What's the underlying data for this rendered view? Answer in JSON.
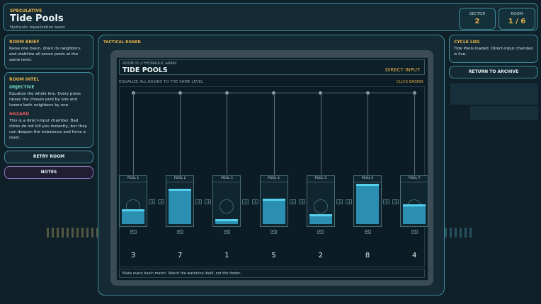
{
  "header": {
    "kicker": "SPECULATIVE",
    "title": "Tide Pools",
    "subtitle": "Hydraulic equalization basin",
    "sector_label": "SECTOR",
    "sector_value": "2",
    "room_label": "ROOM",
    "room_value": "1 / 6"
  },
  "brief": {
    "title": "ROOM BRIEF",
    "text": "Raise one basin, drain its neighbors, and stabilize all seven pools at the same level."
  },
  "intel": {
    "title": "ROOM INTEL",
    "objective_label": "OBJECTIVE",
    "objective_text": "Equalize the whole line. Every press raises the chosen pool by one and lowers both neighbors by one.",
    "hazard_label": "HAZARD",
    "hazard_text": "This is a direct-input chamber. Bad clicks do not kill you instantly, but they can deepen the imbalance and force a reset."
  },
  "buttons": {
    "retry": "RETRY ROOM",
    "notes": "NOTES",
    "archive": "RETURN TO ARCHIVE"
  },
  "board": {
    "label": "TACTICAL BOARD",
    "room_line": "ROOM 01 // HYDRAULIC ARRAY",
    "name": "TIDE POOLS",
    "mode": "DIRECT INPUT",
    "instruction": "EQUALIZE ALL BASINS TO THE SAME LEVEL",
    "click_hint": "CLICK BASINS",
    "footer": "Make every basin match. Watch the waterline itself, not the footer.",
    "minus_label": "-1",
    "plus_label": "+1",
    "max_level": 8,
    "pools": [
      {
        "label": "POOL 1",
        "level": 3
      },
      {
        "label": "POOL 2",
        "level": 7
      },
      {
        "label": "POOL 3",
        "level": 1
      },
      {
        "label": "POOL 4",
        "level": 5
      },
      {
        "label": "POOL 5",
        "level": 2
      },
      {
        "label": "POOL 6",
        "level": 8
      },
      {
        "label": "POOL 7",
        "level": 4
      }
    ]
  },
  "cycle_log": {
    "title": "CYCLE LOG",
    "text": "Tide Pools loaded. Direct-input chamber is live."
  },
  "colors": {
    "accent": "#e6b14a",
    "water": "#2a8fb1",
    "border": "#3f8a99",
    "hazard": "#e25a5a"
  }
}
